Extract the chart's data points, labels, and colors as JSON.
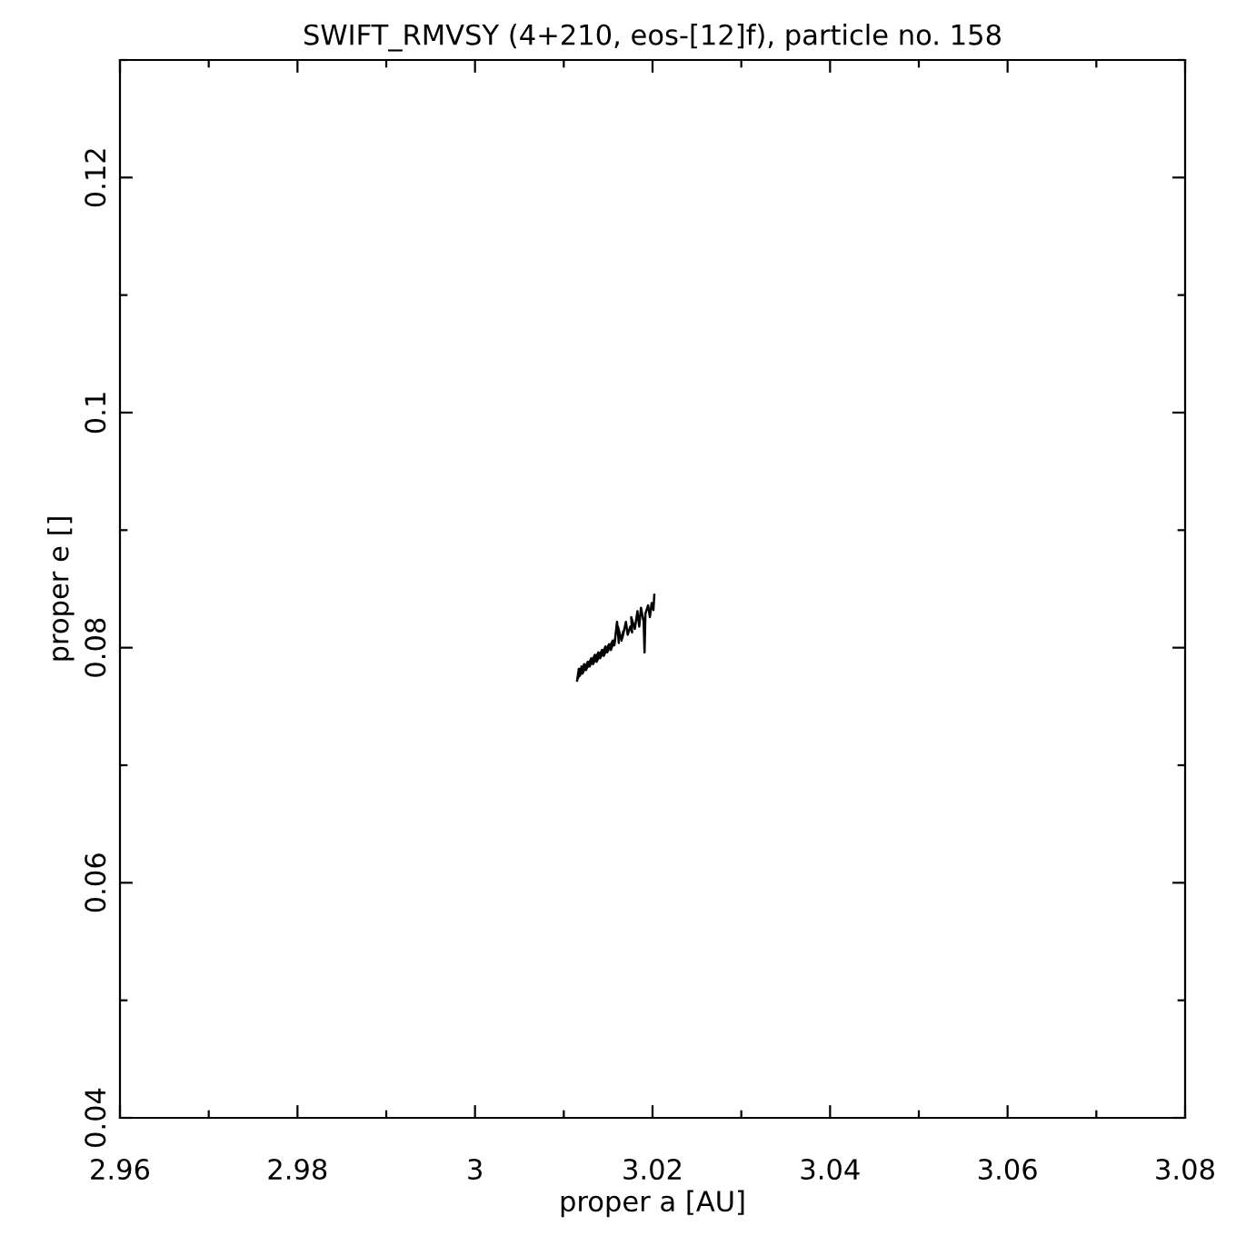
{
  "chart_data": {
    "type": "line",
    "title": "SWIFT_RMVSY (4+210, eos-[12]f), particle no. 158",
    "xlabel": "proper a [AU]",
    "ylabel": "proper e []",
    "series": [
      {
        "color": "#000000",
        "x": [
          3.0115,
          3.0117,
          3.0116,
          3.012,
          3.0118,
          3.0123,
          3.0121,
          3.0127,
          3.0125,
          3.0131,
          3.0129,
          3.0135,
          3.0133,
          3.0139,
          3.0137,
          3.0143,
          3.0141,
          3.0147,
          3.0145,
          3.0151,
          3.0149,
          3.0155,
          3.0153,
          3.0158,
          3.0157,
          3.016,
          3.0162,
          3.0161,
          3.0165,
          3.0167,
          3.0166,
          3.017,
          3.0172,
          3.0175,
          3.0177,
          3.0176,
          3.018,
          3.0183,
          3.0185,
          3.0187,
          3.019,
          3.0191,
          3.0192,
          3.0195,
          3.0197,
          3.0199,
          3.0201,
          3.0202
        ],
        "values": [
          0.0772,
          0.0782,
          0.0774,
          0.0784,
          0.0776,
          0.0786,
          0.0778,
          0.0788,
          0.0781,
          0.0791,
          0.0784,
          0.0794,
          0.0786,
          0.0796,
          0.0788,
          0.0798,
          0.0791,
          0.0801,
          0.0793,
          0.0803,
          0.0796,
          0.0806,
          0.0798,
          0.0808,
          0.0802,
          0.0822,
          0.0804,
          0.0818,
          0.0806,
          0.0814,
          0.0808,
          0.0822,
          0.0811,
          0.0818,
          0.0813,
          0.0826,
          0.0816,
          0.0831,
          0.0818,
          0.0834,
          0.0822,
          0.0796,
          0.0829,
          0.0836,
          0.0826,
          0.0838,
          0.0832,
          0.0845
        ]
      }
    ],
    "xlim": [
      2.96,
      3.08
    ],
    "ylim": [
      0.04,
      0.13
    ],
    "xticks": [
      2.96,
      {
        "value": 2.97,
        "label": null
      },
      2.98,
      {
        "value": 2.99,
        "label": null
      },
      3,
      {
        "value": 3.01,
        "label": null
      },
      3.02,
      {
        "value": 3.03,
        "label": null
      },
      3.04,
      {
        "value": 3.05,
        "label": null
      },
      3.06,
      {
        "value": 3.07,
        "label": null
      },
      3.08
    ],
    "yticks": [
      0.04,
      {
        "value": 0.05,
        "label": null
      },
      0.06,
      {
        "value": 0.07,
        "label": null
      },
      0.08,
      {
        "value": 0.09,
        "label": null
      },
      0.1,
      {
        "value": 0.11,
        "label": null
      },
      0.12,
      {
        "value": 0.13,
        "label": null
      }
    ],
    "grid": false,
    "legend": false,
    "marker": "none",
    "line_style": "solid"
  }
}
